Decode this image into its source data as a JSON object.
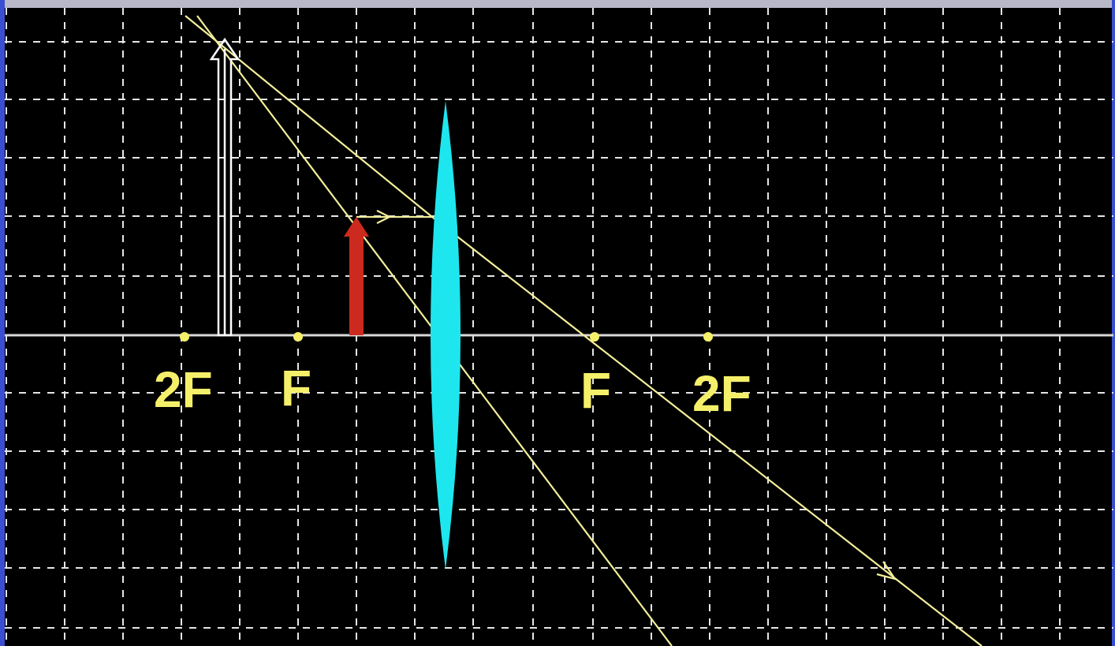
{
  "labels": {
    "left_2f": "2F",
    "left_f": "F",
    "right_f": "F",
    "right_2f": "2F"
  },
  "colors": {
    "background": "#000000",
    "grid": "#e6e6e6",
    "axis": "#d8d8d8",
    "lens": "#1ee6ee",
    "object_arrow": "#cc2a1f",
    "image_arrow": "#ffffff",
    "ray": "#f2ee9a",
    "focal_point": "#f5f06a",
    "label": "#f5f06a"
  },
  "icons": {
    "lens": "converging-lens-icon",
    "object": "object-arrow-icon",
    "image": "virtual-image-arrow-icon"
  }
}
